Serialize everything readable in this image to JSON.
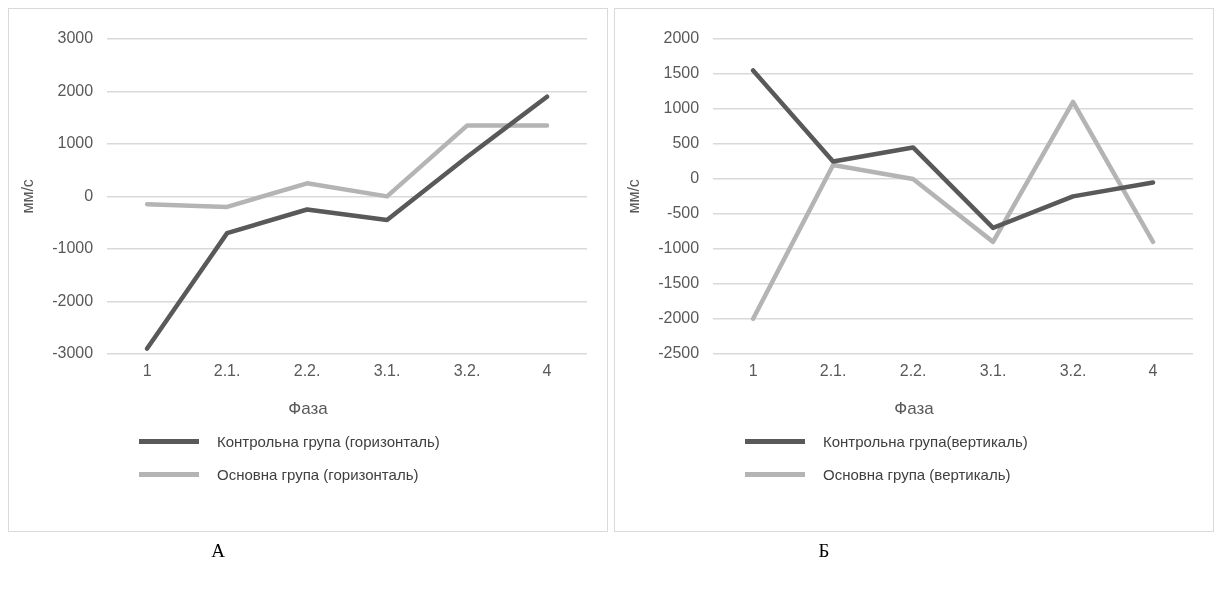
{
  "chart_data": [
    {
      "type": "line",
      "xlabel": "Фаза",
      "ylabel": "мм/с",
      "categories": [
        "1",
        "2.1.",
        "2.2.",
        "3.1.",
        "3.2.",
        "4"
      ],
      "series": [
        {
          "name": "Контрольна група (горизонталь)",
          "color": "#595959",
          "values": [
            -2900,
            -700,
            -250,
            -450,
            750,
            1900
          ]
        },
        {
          "name": "Основна група (горизонталь)",
          "color": "#b4b4b4",
          "values": [
            -150,
            -200,
            250,
            0,
            1350,
            1350
          ]
        }
      ],
      "ylim": [
        -3000,
        3000
      ],
      "yticks": [
        -3000,
        -2000,
        -1000,
        0,
        1000,
        2000,
        3000
      ],
      "grid": "y",
      "legend": "bottom",
      "marker": "none",
      "line_style": "solid",
      "annotations": [
        "А"
      ]
    },
    {
      "type": "line",
      "xlabel": "Фаза",
      "ylabel": "мм/с",
      "categories": [
        "1",
        "2.1.",
        "2.2.",
        "3.1.",
        "3.2.",
        "4"
      ],
      "series": [
        {
          "name": "Контрольна група(вертикаль)",
          "color": "#595959",
          "values": [
            1550,
            250,
            450,
            -700,
            -250,
            -50
          ]
        },
        {
          "name": "Основна група (вертикаль)",
          "color": "#b4b4b4",
          "values": [
            -2000,
            200,
            0,
            -900,
            1100,
            -900
          ]
        }
      ],
      "ylim": [
        -2500,
        2000
      ],
      "yticks": [
        -2500,
        -2000,
        -1500,
        -1000,
        -500,
        0,
        500,
        1000,
        1500,
        2000
      ],
      "grid": "y",
      "legend": "bottom",
      "marker": "none",
      "line_style": "solid",
      "annotations": [
        "Б"
      ]
    }
  ]
}
